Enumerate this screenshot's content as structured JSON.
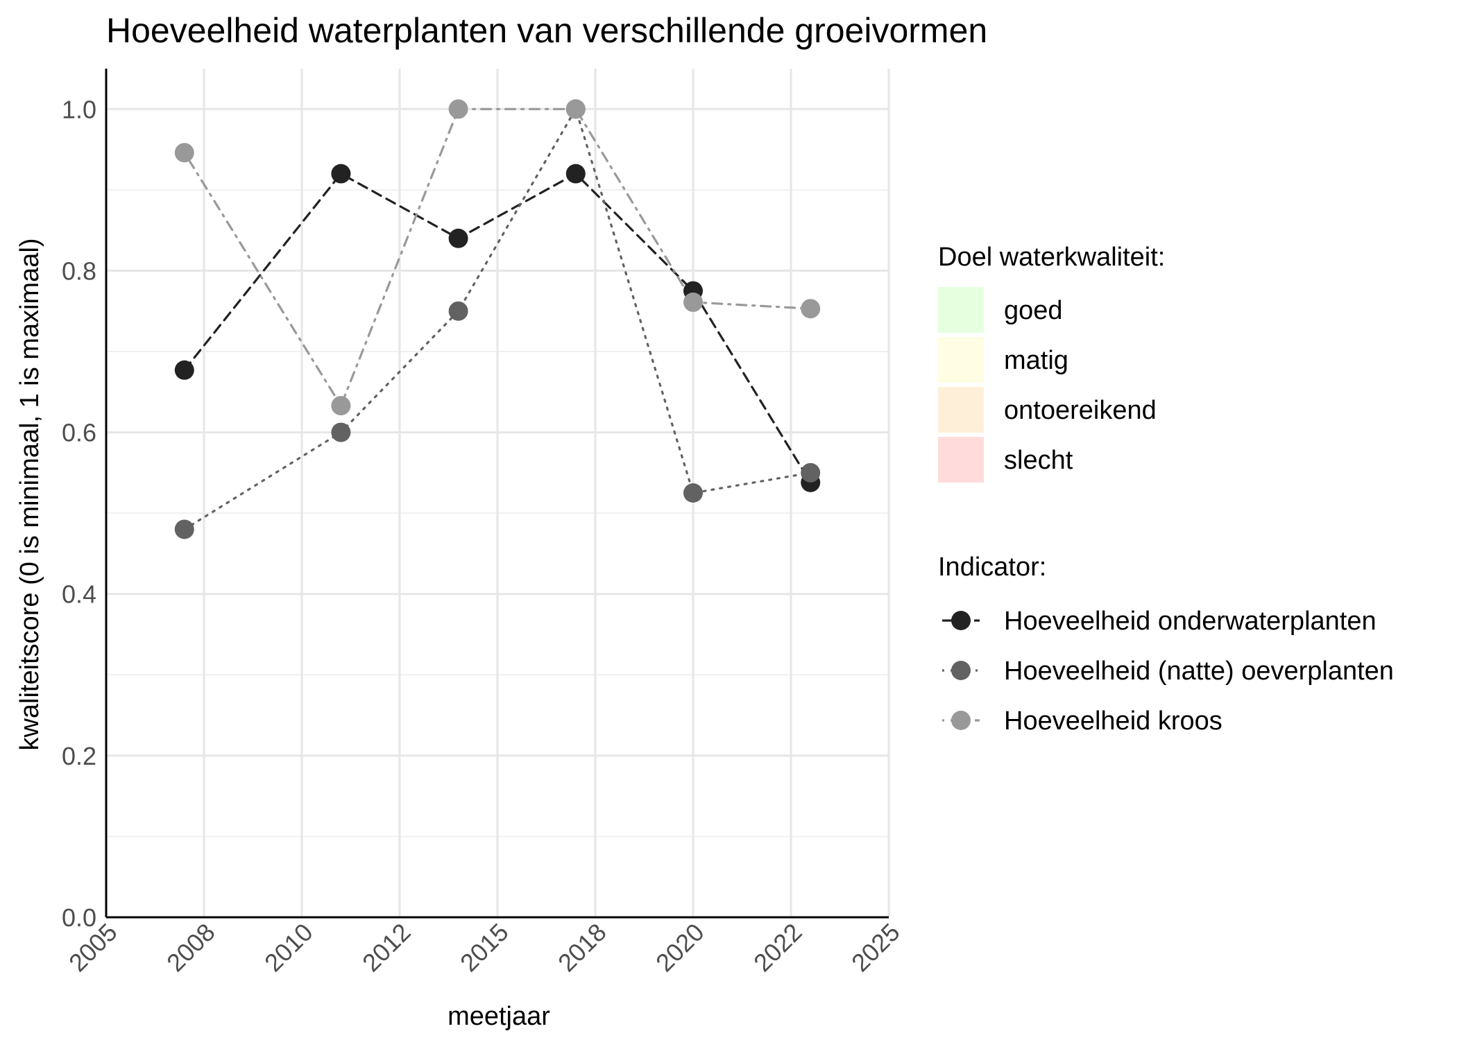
{
  "chart_data": {
    "type": "line",
    "title": "Hoeveelheid waterplanten van verschillende groeivormen",
    "xlabel": "meetjaar",
    "ylabel": "kwaliteitscore (0 is minimaal, 1 is maximaal)",
    "xlim": [
      2005,
      2025
    ],
    "ylim": [
      0,
      1.05
    ],
    "x_ticks": [
      {
        "value": 2005,
        "label": "2005"
      },
      {
        "value": 2007.5,
        "label": "2008"
      },
      {
        "value": 2010,
        "label": "2010"
      },
      {
        "value": 2012.5,
        "label": "2012"
      },
      {
        "value": 2015,
        "label": "2015"
      },
      {
        "value": 2017.5,
        "label": "2018"
      },
      {
        "value": 2020,
        "label": "2020"
      },
      {
        "value": 2022.5,
        "label": "2022"
      },
      {
        "value": 2025,
        "label": "2025"
      }
    ],
    "y_ticks": [
      0.0,
      0.2,
      0.4,
      0.6,
      0.8,
      1.0
    ],
    "y_tick_labels": [
      "0.0",
      "0.2",
      "0.4",
      "0.6",
      "0.8",
      "1.0"
    ],
    "grid": true,
    "legend_placement": "right",
    "quality_legend": {
      "title": "Doel waterkwaliteit:",
      "items": [
        {
          "label": "goed",
          "color": "#e5ffdf"
        },
        {
          "label": "matig",
          "color": "#fffde3"
        },
        {
          "label": "ontoereikend",
          "color": "#feefd9"
        },
        {
          "label": "slecht",
          "color": "#ffdcdb"
        }
      ]
    },
    "indicator_legend_title": "Indicator:",
    "series": [
      {
        "name": "Hoeveelheid onderwaterplanten",
        "color": "#222222",
        "line_style": "dashed",
        "x": [
          2007.0,
          2011.0,
          2014.0,
          2017.0,
          2020.0,
          2023.0
        ],
        "values": [
          0.677,
          0.92,
          0.84,
          0.92,
          0.775,
          0.538
        ]
      },
      {
        "name": "Hoeveelheid (natte) oeverplanten",
        "color": "#626262",
        "line_style": "dotted",
        "x": [
          2007.0,
          2011.0,
          2014.0,
          2017.0,
          2020.0,
          2023.0
        ],
        "values": [
          0.48,
          0.6,
          0.75,
          1.0,
          0.525,
          0.55
        ]
      },
      {
        "name": "Hoeveelheid kroos",
        "color": "#999999",
        "line_style": "dotdash",
        "x": [
          2007.0,
          2011.0,
          2014.0,
          2017.0,
          2020.0,
          2023.0
        ],
        "values": [
          0.946,
          0.633,
          1.0,
          1.0,
          0.761,
          0.753
        ]
      }
    ]
  }
}
